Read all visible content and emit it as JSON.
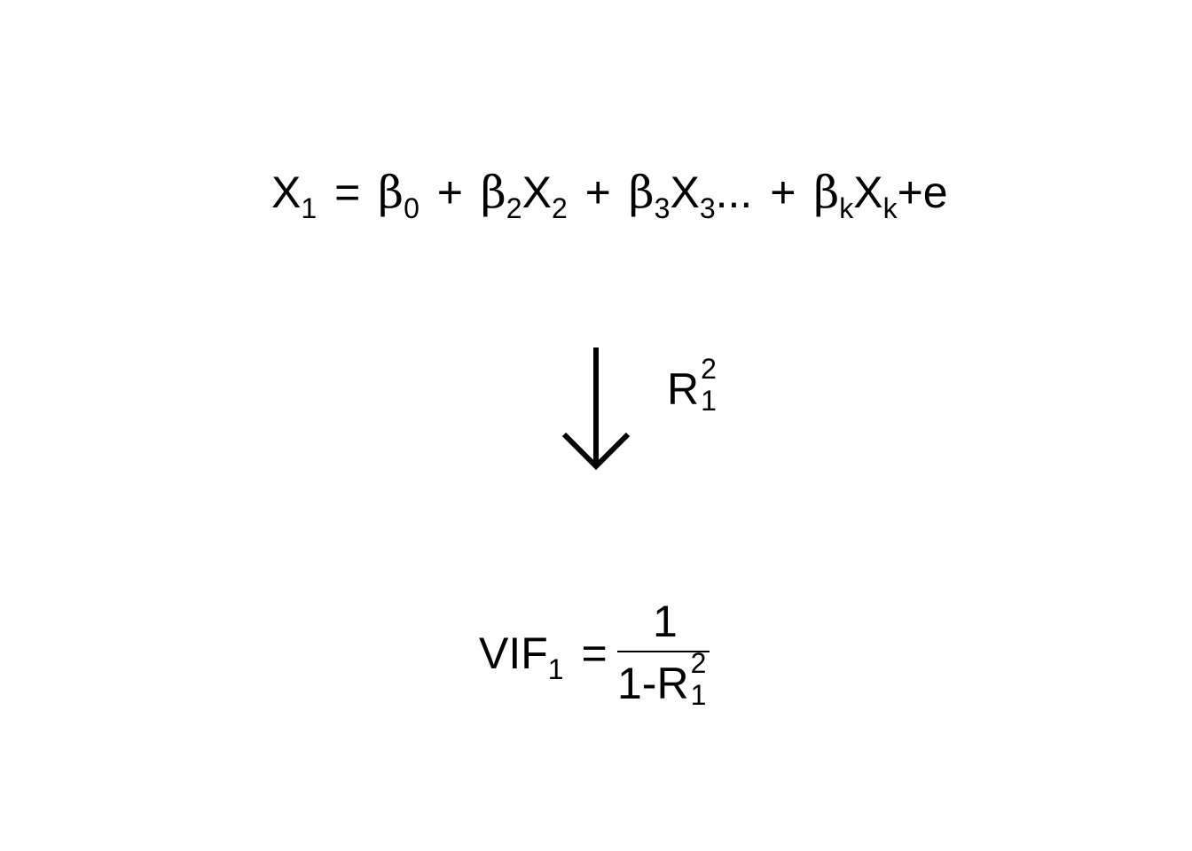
{
  "regression": {
    "lhs_var": "X",
    "lhs_sub": "1",
    "equals": "=",
    "beta": "β",
    "b0_sub": "0",
    "plus1": "+",
    "b2_sub": "2",
    "x2": "X",
    "x2_sub": "2",
    "plus2": "+",
    "b3_sub": "3",
    "x3": "X",
    "x3_sub": "3",
    "ellipsis": "...",
    "plus3": "+",
    "bk_sub": "k",
    "xk": "X",
    "xk_sub": "k",
    "error_term": "+e"
  },
  "arrow_label": {
    "var": "R",
    "sup": "2",
    "sub": "1"
  },
  "vif": {
    "lhs": "VIF",
    "lhs_sub": "1",
    "equals": "=",
    "numerator": "1",
    "denominator_prefix": "1-R",
    "denominator_sup": "2",
    "denominator_sub": "1"
  }
}
